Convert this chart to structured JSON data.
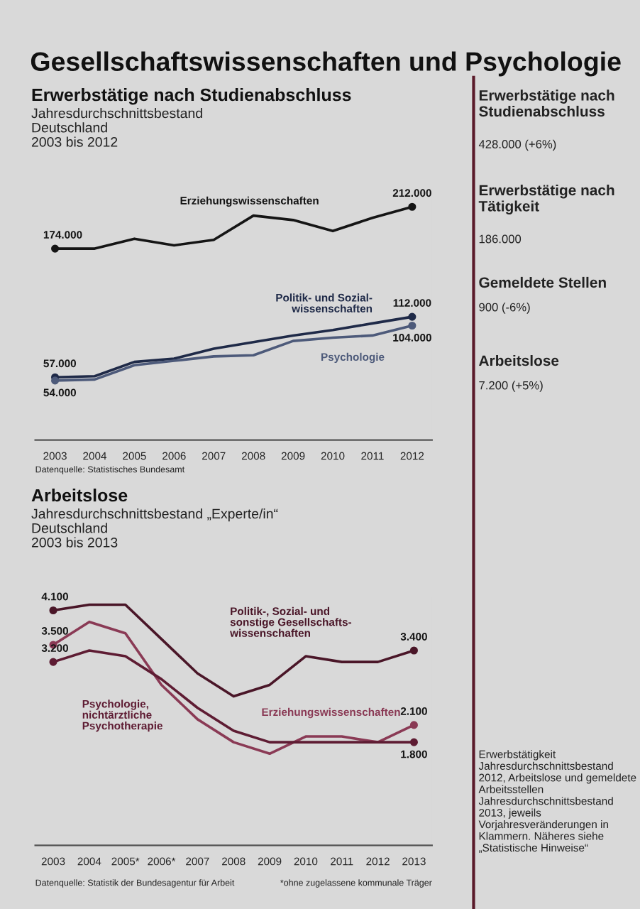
{
  "chart_data": [
    {
      "type": "other",
      "title": "Gesellschaftswissenschaften und Psychologie",
      "annotations": [
        "Erwerbstätige nach Studienabschluss",
        "428.000 (+6%)",
        "Erwerbstätige nach Tätigkeit",
        "186.000",
        "Gemeldete Stellen",
        "900 (-6%)",
        "Arbeitslose",
        "7.200 (+5%)",
        "Erwerbstätigkeit Jahresdurchschnittsbestand 2012, Arbeitslose und gemeldete Arbeitsstellen Jahresdurchschnittsbestand 2013, jeweils Vorjahresveränderungen in Klammern. Näheres siehe „Statistische Hinweise“"
      ]
    },
    {
      "type": "line",
      "title": "Erwerbstätige nach Studienabschluss",
      "subtitle": "Jahresdurchschnittsbestand\nDeutschland\n2003 bis 2012",
      "categories": [
        "2003",
        "2004",
        "2005",
        "2006",
        "2007",
        "2008",
        "2009",
        "2010",
        "2011",
        "2012"
      ],
      "tick_labels": "x",
      "annotations": [
        "Datenquelle: Statistisches Bundesamt"
      ],
      "series": [
        {
          "name": "Erziehungswissenschaften",
          "color": "#151515",
          "values": [
            174000,
            174000,
            183000,
            177000,
            182000,
            204000,
            200000,
            190000,
            202000,
            212000
          ],
          "value_labels": [
            "174.000",
            null,
            null,
            null,
            null,
            null,
            null,
            null,
            null,
            "212.000"
          ]
        },
        {
          "name": "Politik- und Sozial-\nwissenschaften",
          "color": "#1f2a48",
          "values": [
            57000,
            58000,
            71000,
            74000,
            83000,
            89000,
            95000,
            100000,
            106000,
            112000
          ],
          "value_labels": [
            "57.000",
            null,
            null,
            null,
            null,
            null,
            null,
            null,
            null,
            "112.000"
          ]
        },
        {
          "name": "Psychologie",
          "color": "#4d5a7a",
          "values": [
            54000,
            55000,
            68000,
            72000,
            76000,
            77000,
            90000,
            93000,
            95000,
            104000
          ],
          "value_labels": [
            "54.000",
            null,
            null,
            null,
            null,
            null,
            null,
            null,
            null,
            "104.000"
          ]
        }
      ]
    },
    {
      "type": "line",
      "title": "Arbeitslose",
      "subtitle": "Jahresdurchschnittsbestand „Experte/in“\nDeutschland\n2003 bis 2013",
      "categories": [
        "2003",
        "2004",
        "2005*",
        "2006*",
        "2007",
        "2008",
        "2009",
        "2010",
        "2011",
        "2012",
        "2013"
      ],
      "tick_labels": "x",
      "annotations": [
        "Datenquelle: Statistik der Bundesagentur für Arbeit",
        "*ohne zugelassene kommunale Träger"
      ],
      "series": [
        {
          "name": "Politik-, Sozial- und\nsonstige Gesellschafts-\nwissenschaften",
          "color": "#4a1628",
          "values": [
            4100,
            4200,
            4200,
            3600,
            3000,
            2600,
            2800,
            3300,
            3200,
            3200,
            3400
          ],
          "value_labels": [
            "4.100",
            null,
            null,
            null,
            null,
            null,
            null,
            null,
            null,
            null,
            "3.400"
          ]
        },
        {
          "name": "Erziehungswissenschaften",
          "color": "#8a3a55",
          "values": [
            3500,
            3900,
            3700,
            2800,
            2200,
            1800,
            1600,
            1900,
            1900,
            1800,
            2100
          ],
          "value_labels": [
            "3.500",
            null,
            null,
            null,
            null,
            null,
            null,
            null,
            null,
            null,
            "2.100"
          ]
        },
        {
          "name": "Psychologie,\nnichtärztliche\nPsychotherapie",
          "color": "#5e1c33",
          "values": [
            3200,
            3400,
            3300,
            2900,
            2400,
            2000,
            1800,
            1800,
            1800,
            1800,
            1800
          ],
          "value_labels": [
            "3.200",
            null,
            null,
            null,
            null,
            null,
            null,
            null,
            null,
            null,
            "1.800"
          ]
        }
      ]
    }
  ]
}
